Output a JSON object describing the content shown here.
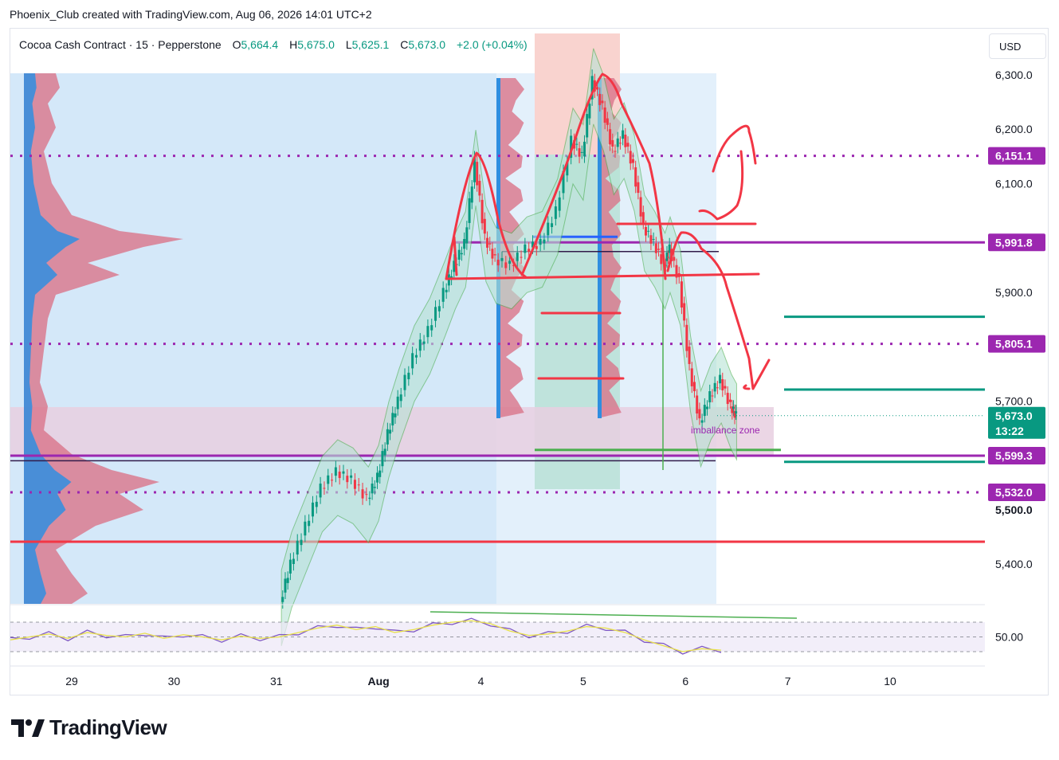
{
  "header": {
    "caption": "Phoenix_Club created with TradingView.com, Aug 06, 2026 14:01 UTC+2"
  },
  "legend": {
    "symbol": "Cocoa Cash Contract · 15 · Pepperstone",
    "o_label": "O",
    "o_value": "5,664.4",
    "h_label": "H",
    "h_value": "5,675.0",
    "l_label": "L",
    "l_value": "5,625.1",
    "c_label": "C",
    "c_value": "5,673.0",
    "change": "+2.0 (+0.04%)"
  },
  "currency_button": "USD",
  "logo": {
    "icon": "tradingview-logo-icon",
    "text": "TradingView"
  },
  "chart_data": {
    "type": "line",
    "title": "",
    "price_axis": {
      "ticks": [
        {
          "value": 6300,
          "label": "6,300.0"
        },
        {
          "value": 6200,
          "label": "6,200.0"
        },
        {
          "value": 6100,
          "label": "6,100.0"
        },
        {
          "value": 5900,
          "label": "5,900.0"
        },
        {
          "value": 5700,
          "label": "5,700.0"
        },
        {
          "value": 5400,
          "label": "5,400.0"
        }
      ],
      "bold_ticks": [
        {
          "value": 5500,
          "label": "5,500.0"
        }
      ],
      "range": [
        5320,
        6330
      ]
    },
    "time_axis": {
      "ticks": [
        {
          "label": "29",
          "t": 1.0
        },
        {
          "label": "30",
          "t": 2.0
        },
        {
          "label": "31",
          "t": 3.0
        },
        {
          "label": "Aug",
          "t": 4.0
        },
        {
          "label": "4",
          "t": 5.0
        },
        {
          "label": "5",
          "t": 6.0
        },
        {
          "label": "6",
          "t": 7.0
        },
        {
          "label": "7",
          "t": 8.0
        },
        {
          "label": "10",
          "t": 9.0
        }
      ]
    },
    "price_tags": [
      {
        "value": 6151.1,
        "label": "6,151.1",
        "color": "#9c27b0"
      },
      {
        "value": 5991.8,
        "label": "5,991.8",
        "color": "#9c27b0"
      },
      {
        "value": 5805.1,
        "label": "5,805.1",
        "color": "#9c27b0"
      },
      {
        "value": 5673.0,
        "label": "5,673.0",
        "sublabel": "13:22",
        "color": "#089981"
      },
      {
        "value": 5599.3,
        "label": "5,599.3",
        "color": "#9c27b0"
      },
      {
        "value": 5532.0,
        "label": "5,532.0",
        "color": "#9c27b0"
      }
    ],
    "close_series": [
      [
        3.05,
        5330
      ],
      [
        3.15,
        5400
      ],
      [
        3.3,
        5470
      ],
      [
        3.45,
        5540
      ],
      [
        3.6,
        5570
      ],
      [
        3.75,
        5555
      ],
      [
        3.9,
        5520
      ],
      [
        4.0,
        5560
      ],
      [
        4.1,
        5640
      ],
      [
        4.2,
        5700
      ],
      [
        4.35,
        5780
      ],
      [
        4.5,
        5830
      ],
      [
        4.65,
        5900
      ],
      [
        4.75,
        5950
      ],
      [
        4.85,
        5990
      ],
      [
        4.95,
        6140
      ],
      [
        5.05,
        6000
      ],
      [
        5.15,
        5960
      ],
      [
        5.3,
        5950
      ],
      [
        5.45,
        5980
      ],
      [
        5.6,
        5990
      ],
      [
        5.75,
        6050
      ],
      [
        5.9,
        6180
      ],
      [
        6.0,
        6150
      ],
      [
        6.1,
        6290
      ],
      [
        6.2,
        6240
      ],
      [
        6.3,
        6160
      ],
      [
        6.4,
        6190
      ],
      [
        6.5,
        6130
      ],
      [
        6.6,
        6020
      ],
      [
        6.7,
        5990
      ],
      [
        6.8,
        5950
      ],
      [
        6.85,
        5980
      ],
      [
        6.95,
        5920
      ],
      [
        7.05,
        5760
      ],
      [
        7.15,
        5660
      ],
      [
        7.25,
        5710
      ],
      [
        7.35,
        5740
      ],
      [
        7.45,
        5690
      ],
      [
        7.5,
        5673
      ]
    ],
    "rsi": {
      "label": "50.00",
      "levels": [
        70,
        50,
        30
      ],
      "values": [
        [
          0.0,
          46
        ],
        [
          0.2,
          50
        ],
        [
          0.4,
          54
        ],
        [
          0.6,
          48
        ],
        [
          0.8,
          56
        ],
        [
          1.0,
          52
        ],
        [
          1.2,
          50
        ],
        [
          1.4,
          55
        ],
        [
          1.6,
          48
        ],
        [
          1.8,
          53
        ],
        [
          2.0,
          50
        ],
        [
          2.2,
          46
        ],
        [
          2.4,
          51
        ],
        [
          2.6,
          48
        ],
        [
          2.8,
          50
        ],
        [
          3.0,
          56
        ],
        [
          3.2,
          62
        ],
        [
          3.4,
          66
        ],
        [
          3.6,
          60
        ],
        [
          3.8,
          64
        ],
        [
          4.0,
          56
        ],
        [
          4.2,
          60
        ],
        [
          4.4,
          66
        ],
        [
          4.6,
          70
        ],
        [
          4.8,
          72
        ],
        [
          5.0,
          68
        ],
        [
          5.2,
          58
        ],
        [
          5.4,
          52
        ],
        [
          5.6,
          54
        ],
        [
          5.8,
          58
        ],
        [
          6.0,
          64
        ],
        [
          6.2,
          62
        ],
        [
          6.4,
          56
        ],
        [
          6.6,
          46
        ],
        [
          6.8,
          38
        ],
        [
          7.0,
          30
        ],
        [
          7.2,
          34
        ],
        [
          7.4,
          32
        ]
      ]
    },
    "annotations": [
      {
        "type": "text",
        "label": "imballance zone"
      }
    ],
    "grid": false,
    "legend_position": "top-left"
  }
}
